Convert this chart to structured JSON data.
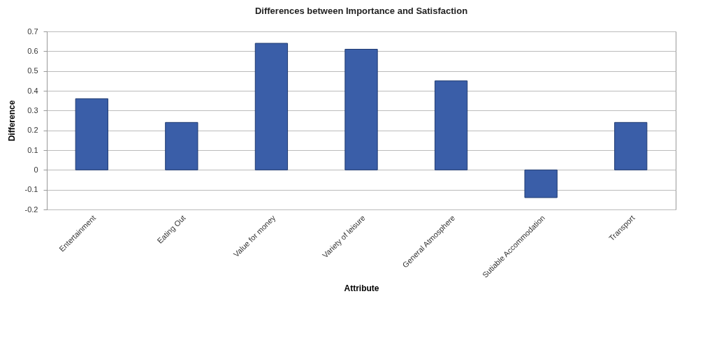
{
  "chart_data": {
    "type": "bar",
    "title": "Differences between Importance and Satisfaction",
    "xlabel": "Attribute",
    "ylabel": "Difference",
    "categories": [
      "Entertainment",
      "Eating Out",
      "Value for money",
      "Variety of leisure",
      "General Atmosphere",
      "Sutiable Accommodation",
      "Transport"
    ],
    "values": [
      0.36,
      0.24,
      0.64,
      0.61,
      0.45,
      -0.14,
      0.24
    ],
    "color": "#3a5ea8",
    "ylim": [
      -0.2,
      0.7
    ],
    "yticks": [
      {
        "value": -0.2,
        "label": "-0.2"
      },
      {
        "value": -0.1,
        "label": "-0.1"
      },
      0,
      {
        "value": 0.1,
        "label": "0.1"
      },
      {
        "value": 0.2,
        "label": "0.2"
      },
      {
        "value": 0.3,
        "label": "0.3"
      },
      {
        "value": 0.4,
        "label": "0.4"
      },
      {
        "value": 0.5,
        "label": "0.5"
      },
      {
        "value": 0.6,
        "label": "0.6"
      },
      {
        "value": 0.7,
        "label": "0.7"
      }
    ],
    "grid": "y"
  }
}
